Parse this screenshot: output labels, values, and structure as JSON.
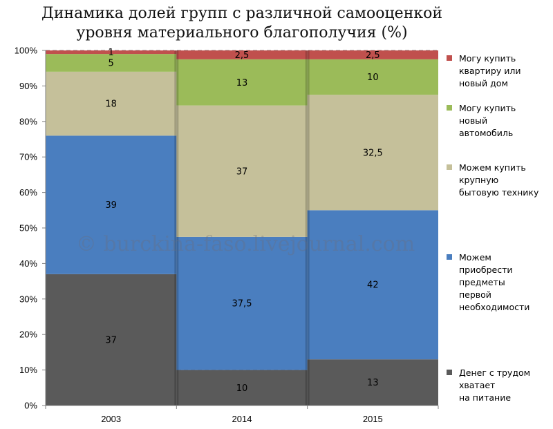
{
  "chart_data": {
    "type": "bar",
    "stacked": true,
    "title": [
      "Динамика долей групп с различной самооценкой",
      "уровня материального благополучия (%)"
    ],
    "categories": [
      "2003",
      "2014",
      "2015"
    ],
    "ylim": [
      0,
      100
    ],
    "yticks": [
      "0%",
      "10%",
      "20%",
      "30%",
      "40%",
      "50%",
      "60%",
      "70%",
      "80%",
      "90%",
      "100%"
    ],
    "grid": true,
    "legend_position": "right",
    "series": [
      {
        "name": "Денег с трудом хватает на питание",
        "color": "#5a5a5a",
        "values": [
          37,
          10,
          13
        ],
        "labels": [
          "37",
          "10",
          "13"
        ]
      },
      {
        "name": "Можем приобрести предметы первой необходимости",
        "color": "#4a7ebf",
        "values": [
          39,
          37.5,
          42
        ],
        "labels": [
          "39",
          "37,5",
          "42"
        ]
      },
      {
        "name": "Можем купить крупную бытовую технику",
        "color": "#c5c09a",
        "values": [
          18,
          37,
          32.5
        ],
        "labels": [
          "18",
          "37",
          "32,5"
        ]
      },
      {
        "name": "Могу купить новый автомобиль",
        "color": "#9bbb59",
        "values": [
          5,
          13,
          10
        ],
        "labels": [
          "5",
          "13",
          "10"
        ]
      },
      {
        "name": "Могу купить квартиру или новый дом",
        "color": "#c0504d",
        "values": [
          1,
          2.5,
          2.5
        ],
        "labels": [
          "1",
          "2,5",
          "2,5"
        ]
      }
    ],
    "legend_lines": [
      [
        "Денег с трудом",
        "хватает",
        "на питание"
      ],
      [
        "Можем",
        "приобрести",
        "предметы",
        "первой",
        "необходимости"
      ],
      [
        "Можем купить",
        "крупную",
        "бытовую технику"
      ],
      [
        "Могу купить",
        "новый",
        "автомобиль"
      ],
      [
        "Могу купить",
        "квартиру или",
        "новый дом"
      ]
    ]
  },
  "watermark": "© burckina-faso.livejournal.com"
}
